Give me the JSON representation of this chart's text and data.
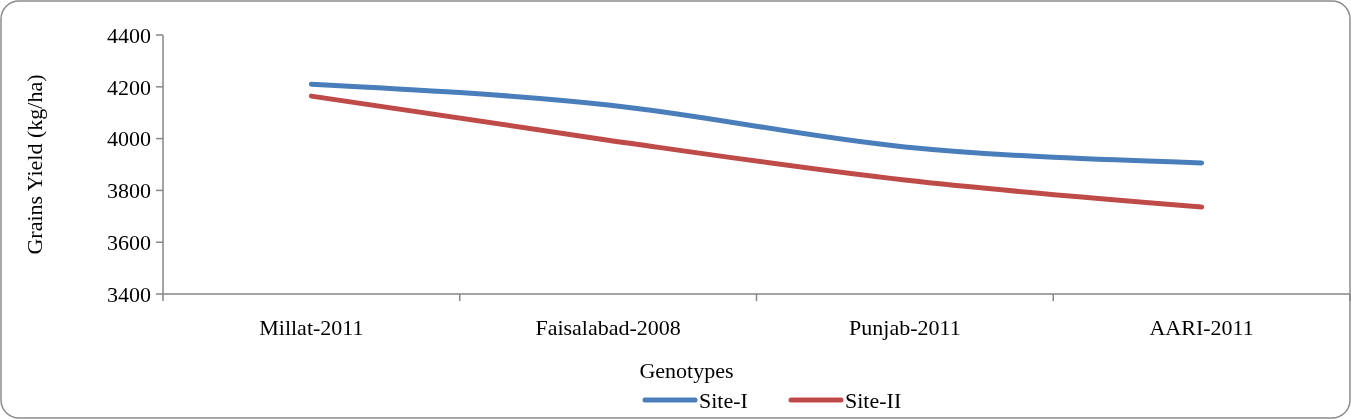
{
  "chart_data": {
    "type": "line",
    "xlabel": "Genotypes",
    "ylabel": "Grains Yield (kg/ha)",
    "categories": [
      "Millat-2011",
      "Faisalabad-2008",
      "Punjab-2011",
      "AARI-2011"
    ],
    "series": [
      {
        "name": "Site-I",
        "color": "#4a7ebb",
        "values": [
          4210,
          4130,
          3968,
          3906
        ]
      },
      {
        "name": "Site-II",
        "color": "#be4b48",
        "values": [
          4164,
          3994,
          3840,
          3736
        ]
      }
    ],
    "ylim": [
      3400,
      4400
    ],
    "yticks": [
      3400,
      3600,
      3800,
      4000,
      4200,
      4400
    ],
    "grid": false,
    "legend": "bottom",
    "marker": "none",
    "line_style": "solid"
  }
}
